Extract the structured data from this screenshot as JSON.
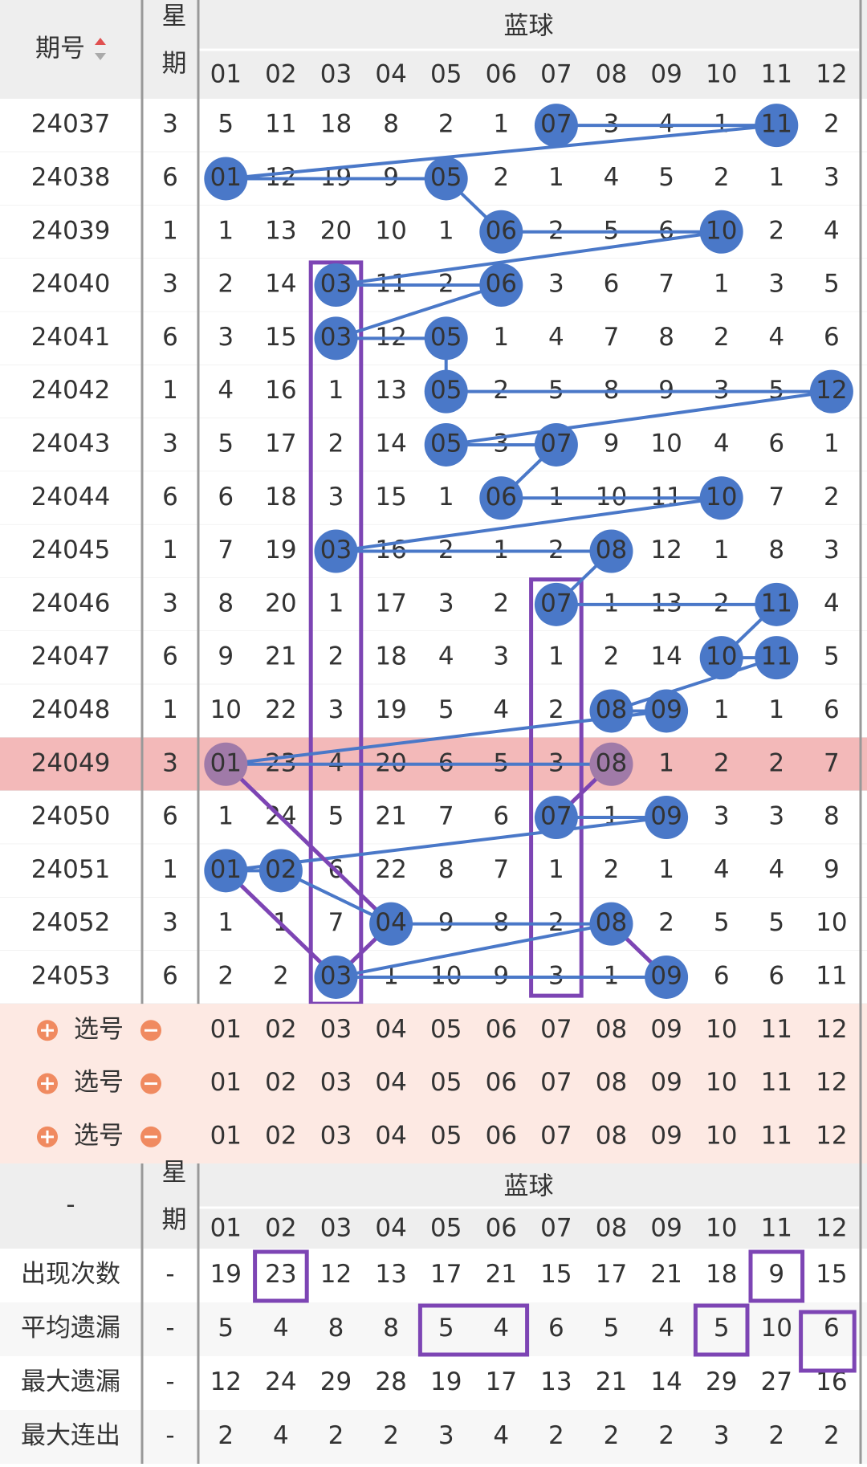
{
  "header": {
    "period": "期号",
    "weekday": "星期",
    "group": "蓝球",
    "columns": [
      "01",
      "02",
      "03",
      "04",
      "05",
      "06",
      "07",
      "08",
      "09",
      "10",
      "11",
      "12"
    ]
  },
  "rows": [
    {
      "period": "24037",
      "weekday": 3,
      "cells": [
        5,
        11,
        18,
        8,
        2,
        1,
        "07",
        3,
        4,
        1,
        "11",
        2
      ]
    },
    {
      "period": "24038",
      "weekday": 6,
      "cells": [
        "01",
        12,
        19,
        9,
        "05",
        2,
        1,
        4,
        5,
        2,
        1,
        3
      ]
    },
    {
      "period": "24039",
      "weekday": 1,
      "cells": [
        1,
        13,
        20,
        10,
        1,
        "06",
        2,
        5,
        6,
        "10",
        2,
        4
      ]
    },
    {
      "period": "24040",
      "weekday": 3,
      "cells": [
        2,
        14,
        "03",
        11,
        2,
        "06",
        3,
        6,
        7,
        1,
        3,
        5
      ]
    },
    {
      "period": "24041",
      "weekday": 6,
      "cells": [
        3,
        15,
        "03",
        12,
        "05",
        1,
        4,
        7,
        8,
        2,
        4,
        6
      ]
    },
    {
      "period": "24042",
      "weekday": 1,
      "cells": [
        4,
        16,
        1,
        13,
        "05",
        2,
        5,
        8,
        9,
        3,
        5,
        "12"
      ]
    },
    {
      "period": "24043",
      "weekday": 3,
      "cells": [
        5,
        17,
        2,
        14,
        "05",
        3,
        "07",
        9,
        10,
        4,
        6,
        1
      ]
    },
    {
      "period": "24044",
      "weekday": 6,
      "cells": [
        6,
        18,
        3,
        15,
        1,
        "06",
        1,
        10,
        11,
        "10",
        7,
        2
      ]
    },
    {
      "period": "24045",
      "weekday": 1,
      "cells": [
        7,
        19,
        "03",
        16,
        2,
        1,
        2,
        "08",
        12,
        1,
        8,
        3
      ]
    },
    {
      "period": "24046",
      "weekday": 3,
      "cells": [
        8,
        20,
        1,
        17,
        3,
        2,
        "07",
        1,
        13,
        2,
        "11",
        4
      ]
    },
    {
      "period": "24047",
      "weekday": 6,
      "cells": [
        9,
        21,
        2,
        18,
        4,
        3,
        1,
        2,
        14,
        "10",
        "11",
        5
      ]
    },
    {
      "period": "24048",
      "weekday": 1,
      "cells": [
        10,
        22,
        3,
        19,
        5,
        4,
        2,
        "08",
        "09",
        1,
        1,
        6
      ]
    },
    {
      "period": "24049",
      "weekday": 3,
      "cells": [
        "01",
        23,
        4,
        20,
        6,
        5,
        3,
        "08",
        1,
        2,
        2,
        7
      ]
    },
    {
      "period": "24050",
      "weekday": 6,
      "cells": [
        1,
        24,
        5,
        21,
        7,
        6,
        "07",
        1,
        "09",
        3,
        3,
        8
      ]
    },
    {
      "period": "24051",
      "weekday": 1,
      "cells": [
        "01",
        "02",
        6,
        22,
        8,
        7,
        1,
        2,
        1,
        4,
        4,
        9
      ]
    },
    {
      "period": "24052",
      "weekday": 3,
      "cells": [
        1,
        1,
        7,
        "04",
        9,
        8,
        2,
        "08",
        2,
        5,
        5,
        10
      ]
    },
    {
      "period": "24053",
      "weekday": 6,
      "cells": [
        2,
        2,
        "03",
        1,
        10,
        9,
        3,
        1,
        "09",
        6,
        6,
        11
      ]
    }
  ],
  "select_rows": [
    {
      "label": "选号",
      "numbers": [
        "01",
        "02",
        "03",
        "04",
        "05",
        "06",
        "07",
        "08",
        "09",
        "10",
        "11",
        "12"
      ]
    },
    {
      "label": "选号",
      "numbers": [
        "01",
        "02",
        "03",
        "04",
        "05",
        "06",
        "07",
        "08",
        "09",
        "10",
        "11",
        "12"
      ]
    },
    {
      "label": "选号",
      "numbers": [
        "01",
        "02",
        "03",
        "04",
        "05",
        "06",
        "07",
        "08",
        "09",
        "10",
        "11",
        "12"
      ]
    }
  ],
  "stats_header": {
    "period": "-",
    "weekday": "星期",
    "group": "蓝球",
    "columns": [
      "01",
      "02",
      "03",
      "04",
      "05",
      "06",
      "07",
      "08",
      "09",
      "10",
      "11",
      "12"
    ]
  },
  "stats": [
    {
      "label": "出现次数",
      "weekday": "-",
      "values": [
        19,
        23,
        12,
        13,
        17,
        21,
        15,
        17,
        21,
        18,
        9,
        15
      ]
    },
    {
      "label": "平均遗漏",
      "weekday": "-",
      "values": [
        5,
        4,
        8,
        8,
        5,
        4,
        6,
        5,
        4,
        5,
        10,
        6
      ]
    },
    {
      "label": "最大遗漏",
      "weekday": "-",
      "values": [
        12,
        24,
        29,
        28,
        19,
        17,
        13,
        21,
        14,
        29,
        27,
        16
      ]
    },
    {
      "label": "最大连出",
      "weekday": "-",
      "values": [
        2,
        4,
        2,
        2,
        3,
        4,
        2,
        2,
        2,
        3,
        2,
        2
      ]
    }
  ]
}
